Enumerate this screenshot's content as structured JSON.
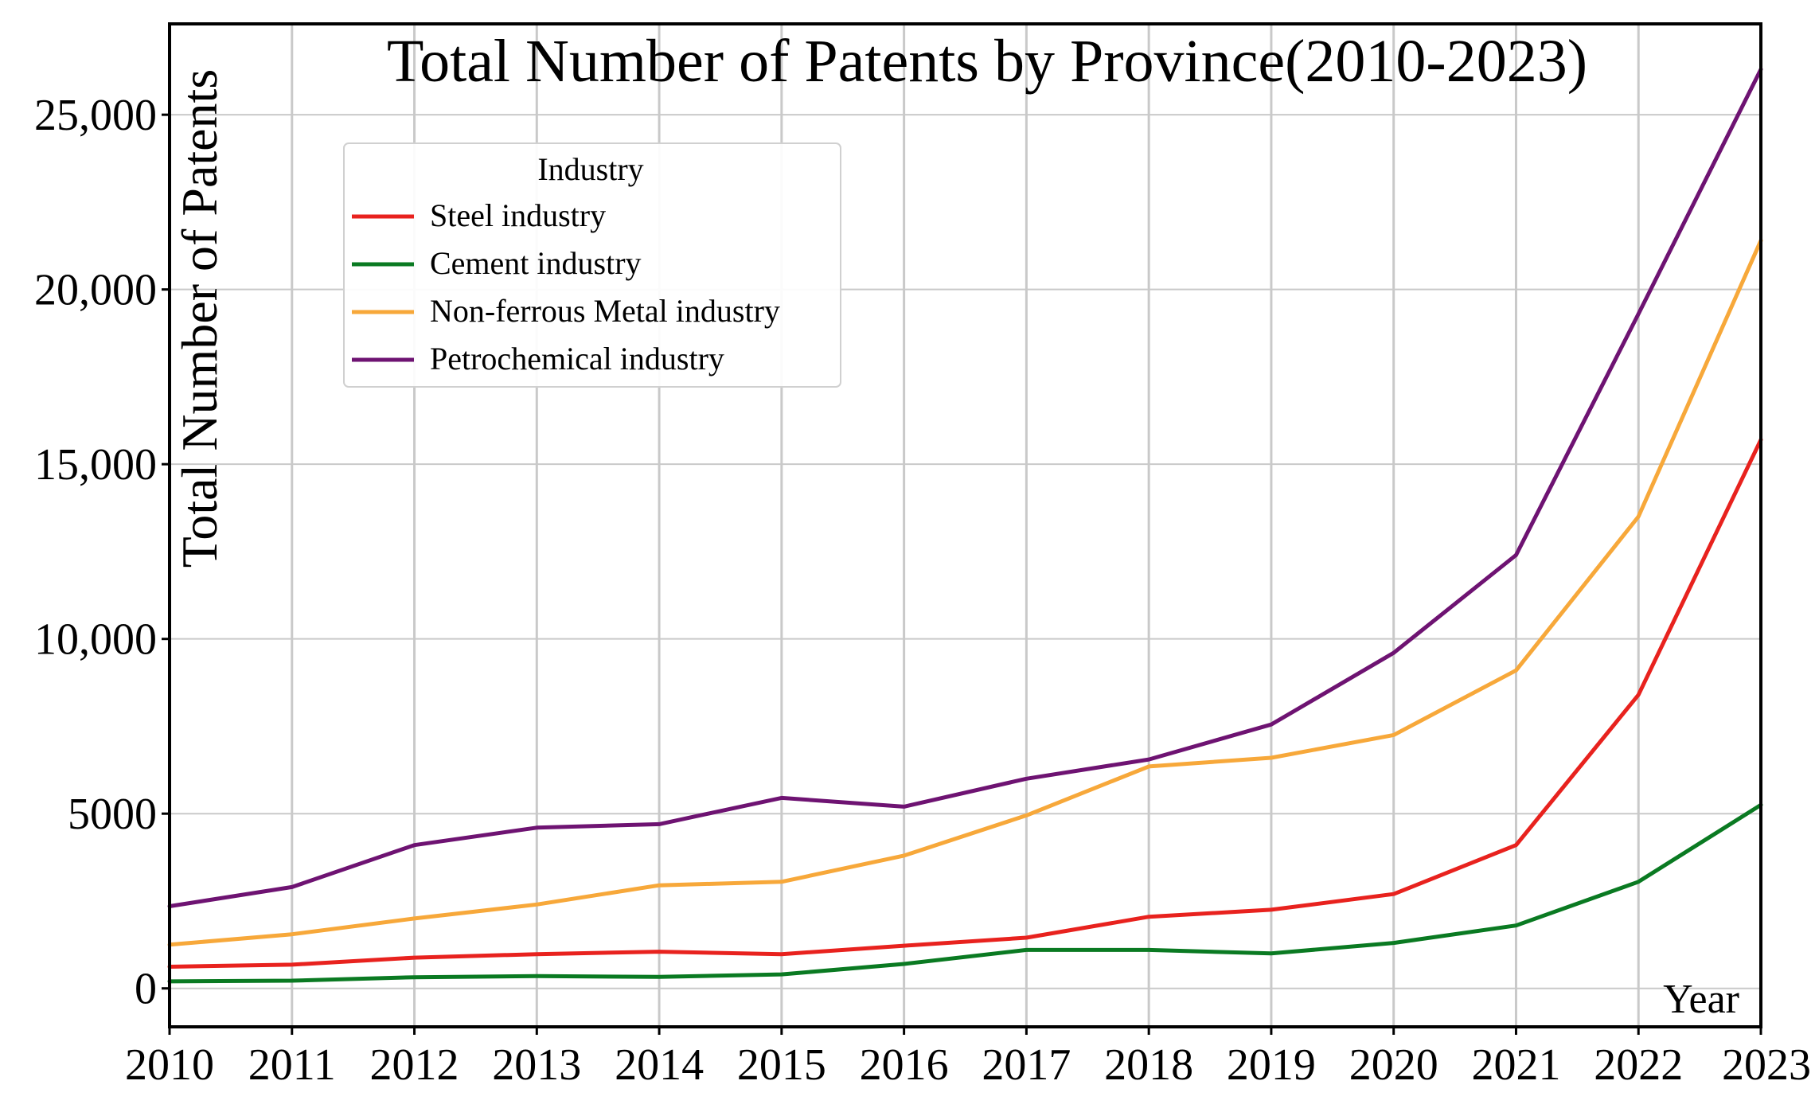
{
  "chart_data": {
    "type": "line",
    "title": "Total Number of Patents by Province(2010-2023)",
    "xlabel": "Year",
    "ylabel": "Total Number of Patents",
    "x": [
      2010,
      2011,
      2012,
      2013,
      2014,
      2015,
      2016,
      2017,
      2018,
      2019,
      2020,
      2021,
      2022,
      2023
    ],
    "x_tick_labels": [
      "2010",
      "2011",
      "2012",
      "2013",
      "2014",
      "2015",
      "2016",
      "2017",
      "2018",
      "2019",
      "2020",
      "2021",
      "2022",
      "2023"
    ],
    "y_ticks": [
      0,
      5000,
      10000,
      15000,
      20000,
      25000
    ],
    "y_tick_labels": [
      "0",
      "5000",
      "10,000",
      "15,000",
      "20,000",
      "25,000"
    ],
    "ylim": [
      -1100,
      27600
    ],
    "grid": true,
    "legend": {
      "title": "Industry",
      "placement": "upper-left"
    },
    "series": [
      {
        "name": "Steel industry",
        "color": "#e8221e",
        "values": [
          620,
          680,
          880,
          980,
          1050,
          980,
          1220,
          1450,
          2050,
          2250,
          2700,
          4100,
          8400,
          15700
        ]
      },
      {
        "name": "Cement industry",
        "color": "#0a7a22",
        "values": [
          200,
          220,
          320,
          350,
          330,
          400,
          700,
          1100,
          1100,
          1000,
          1300,
          1800,
          3050,
          5250
        ]
      },
      {
        "name": "Non-ferrous Metal industry",
        "color": "#f7a83a",
        "values": [
          1250,
          1550,
          2000,
          2400,
          2950,
          3050,
          3800,
          4950,
          6350,
          6600,
          7250,
          9100,
          13500,
          21400
        ]
      },
      {
        "name": "Petrochemical industry",
        "color": "#6e1372",
        "values": [
          2350,
          2900,
          4100,
          4600,
          4700,
          5450,
          5200,
          6000,
          6550,
          7550,
          9600,
          12400,
          19300,
          26300
        ]
      }
    ]
  }
}
